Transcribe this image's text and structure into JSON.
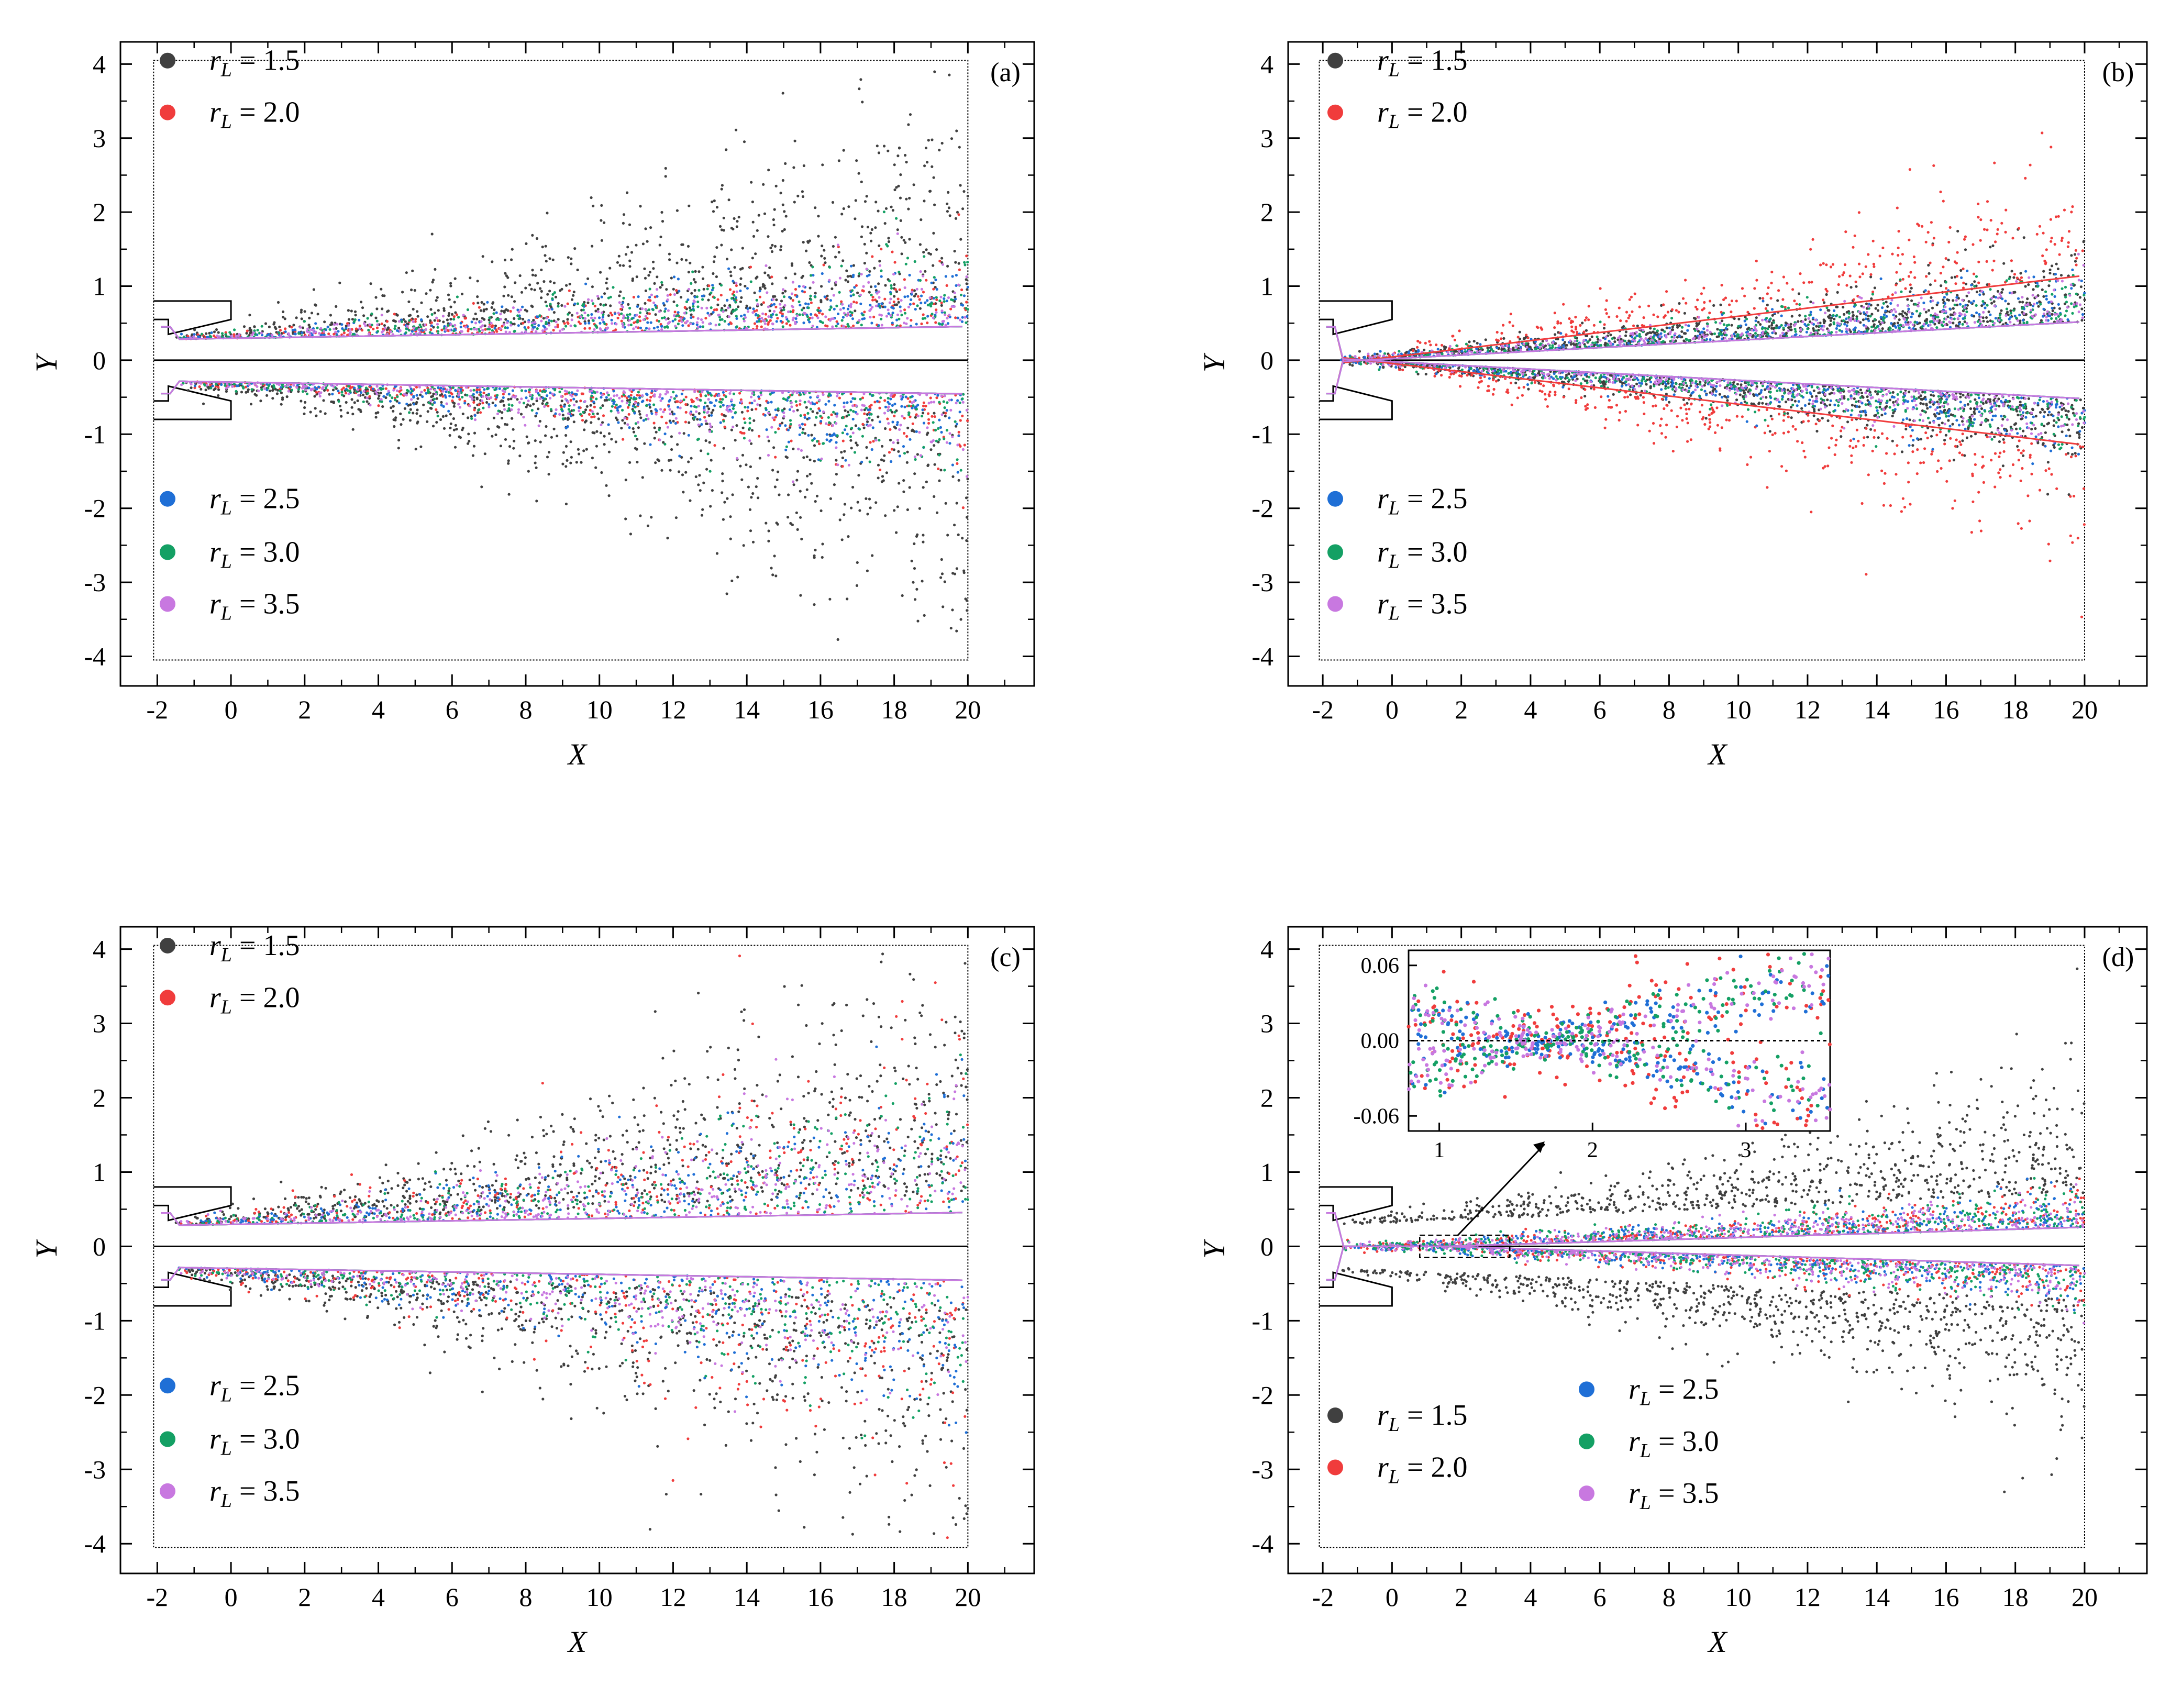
{
  "chart_data": [
    {
      "type": "scatter",
      "panel_label": "(a)",
      "xlabel": "X",
      "ylabel": "Y",
      "xlim": [
        -3.0,
        21.8
      ],
      "ylim": [
        -4.4,
        4.3
      ],
      "xticks": [
        "-2",
        "0",
        "2",
        "4",
        "6",
        "8",
        "10",
        "12",
        "14",
        "16",
        "18",
        "20"
      ],
      "yticks": [
        "4",
        "3",
        "2",
        "1",
        "0",
        "-1",
        "-2",
        "-3",
        "-4"
      ],
      "legend_top": [
        "1.5",
        "2.0"
      ],
      "legend_bottom": [
        "2.5",
        "3.0",
        "3.5"
      ],
      "series": [
        {
          "name": "r_L = 1.5",
          "r_L": "1.5",
          "color": "#404040",
          "spread_at_x20": 3.0
        },
        {
          "name": "r_L = 2.0",
          "r_L": "2.0",
          "color": "#f03c3c",
          "spread_at_x20": 0.9
        },
        {
          "name": "r_L = 2.5",
          "r_L": "2.5",
          "color": "#1f6fd6",
          "spread_at_x20": 0.9
        },
        {
          "name": "r_L = 3.0",
          "r_L": "3.0",
          "color": "#14a064",
          "spread_at_x20": 0.9
        },
        {
          "name": "r_L = 3.5",
          "r_L": "3.5",
          "color": "#c878e0",
          "spread_at_x20": 0.9
        }
      ]
    },
    {
      "type": "scatter",
      "panel_label": "(b)",
      "xlabel": "X",
      "ylabel": "Y",
      "xlim": [
        -3.0,
        21.8
      ],
      "ylim": [
        -4.4,
        4.3
      ],
      "xticks": [
        "-2",
        "0",
        "2",
        "4",
        "6",
        "8",
        "10",
        "12",
        "14",
        "16",
        "18",
        "20"
      ],
      "yticks": [
        "4",
        "3",
        "2",
        "1",
        "0",
        "-1",
        "-2",
        "-3",
        "-4"
      ],
      "legend_top": [
        "1.5",
        "2.0"
      ],
      "legend_bottom": [
        "2.5",
        "3.0",
        "3.5"
      ],
      "series": [
        {
          "name": "r_L = 1.5",
          "r_L": "1.5",
          "color": "#404040",
          "spread_at_x20": 0.8
        },
        {
          "name": "r_L = 2.0",
          "r_L": "2.0",
          "color": "#f03c3c",
          "spread_at_x20": 1.6
        },
        {
          "name": "r_L = 2.5",
          "r_L": "2.5",
          "color": "#1f6fd6",
          "spread_at_x20": 0.6
        },
        {
          "name": "r_L = 3.0",
          "r_L": "3.0",
          "color": "#14a064",
          "spread_at_x20": 0.6
        },
        {
          "name": "r_L = 3.5",
          "r_L": "3.5",
          "color": "#c878e0",
          "spread_at_x20": 0.5
        }
      ]
    },
    {
      "type": "scatter",
      "panel_label": "(c)",
      "xlabel": "X",
      "ylabel": "Y",
      "xlim": [
        -3.0,
        21.8
      ],
      "ylim": [
        -4.4,
        4.3
      ],
      "xticks": [
        "-2",
        "0",
        "2",
        "4",
        "6",
        "8",
        "10",
        "12",
        "14",
        "16",
        "18",
        "20"
      ],
      "yticks": [
        "4",
        "3",
        "2",
        "1",
        "0",
        "-1",
        "-2",
        "-3",
        "-4"
      ],
      "legend_top": [
        "1.5",
        "2.0"
      ],
      "legend_bottom": [
        "2.5",
        "3.0",
        "3.5"
      ],
      "series": [
        {
          "name": "r_L = 1.5",
          "r_L": "1.5",
          "color": "#404040",
          "spread_at_x20": 3.2
        },
        {
          "name": "r_L = 2.0",
          "r_L": "2.0",
          "color": "#f03c3c",
          "spread_at_x20": 2.6
        },
        {
          "name": "r_L = 2.5",
          "r_L": "2.5",
          "color": "#1f6fd6",
          "spread_at_x20": 1.8
        },
        {
          "name": "r_L = 3.0",
          "r_L": "3.0",
          "color": "#14a064",
          "spread_at_x20": 1.7
        },
        {
          "name": "r_L = 3.5",
          "r_L": "3.5",
          "color": "#c878e0",
          "spread_at_x20": 1.7
        }
      ]
    },
    {
      "type": "scatter",
      "panel_label": "(d)",
      "xlabel": "X",
      "ylabel": "Y",
      "xlim": [
        -3.0,
        21.8
      ],
      "ylim": [
        -4.4,
        4.3
      ],
      "xticks": [
        "-2",
        "0",
        "2",
        "4",
        "6",
        "8",
        "10",
        "12",
        "14",
        "16",
        "18",
        "20"
      ],
      "yticks": [
        "4",
        "3",
        "2",
        "1",
        "0",
        "-1",
        "-2",
        "-3",
        "-4"
      ],
      "legend_left": [
        "1.5",
        "2.0"
      ],
      "legend_right": [
        "2.5",
        "3.0",
        "3.5"
      ],
      "series": [
        {
          "name": "r_L = 1.5",
          "r_L": "1.5",
          "color": "#404040",
          "spread_at_x20": 1.6
        },
        {
          "name": "r_L = 2.0",
          "r_L": "2.0",
          "color": "#f03c3c",
          "spread_at_x20": 0.4
        },
        {
          "name": "r_L = 2.5",
          "r_L": "2.5",
          "color": "#1f6fd6",
          "spread_at_x20": 0.4
        },
        {
          "name": "r_L = 3.0",
          "r_L": "3.0",
          "color": "#14a064",
          "spread_at_x20": 0.4
        },
        {
          "name": "r_L = 3.5",
          "r_L": "3.5",
          "color": "#c878e0",
          "spread_at_x20": 0.4
        }
      ],
      "inset": {
        "xlim": [
          0.8,
          3.55
        ],
        "ylim": [
          -0.072,
          0.072
        ],
        "xticks": [
          "1",
          "2",
          "3"
        ],
        "yticks": [
          "0.06",
          "0.00",
          "-0.06"
        ],
        "zoom_box": {
          "x": [
            0.8,
            3.4
          ],
          "y": [
            -0.15,
            0.15
          ]
        }
      }
    }
  ]
}
